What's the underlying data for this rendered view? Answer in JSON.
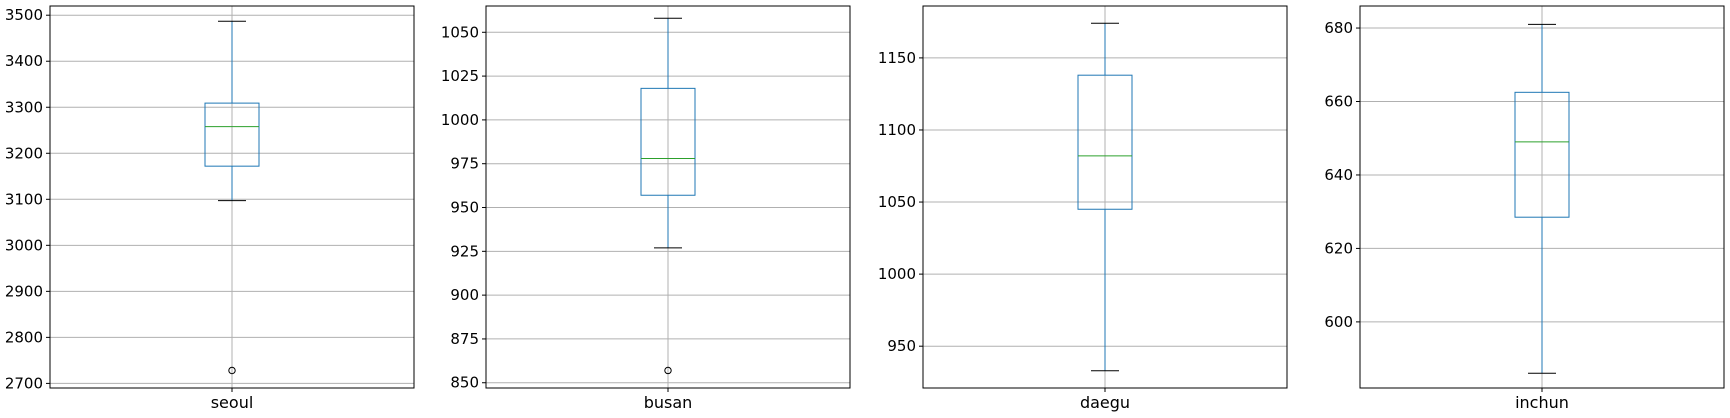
{
  "chart_data": [
    {
      "type": "box",
      "categories": [
        "seoul"
      ],
      "xlabel": "seoul",
      "ylim": [
        2690,
        3520
      ],
      "yticks": [
        2700,
        2800,
        2900,
        3000,
        3100,
        3200,
        3300,
        3400,
        3500
      ],
      "grid": true,
      "stats": {
        "whislo": 3097,
        "q1": 3172,
        "med": 3258,
        "q3": 3309,
        "whishi": 3487,
        "fliers": [
          2728
        ]
      }
    },
    {
      "type": "box",
      "categories": [
        "busan"
      ],
      "xlabel": "busan",
      "ylim": [
        847,
        1065
      ],
      "yticks": [
        850,
        875,
        900,
        925,
        950,
        975,
        1000,
        1025,
        1050
      ],
      "grid": true,
      "stats": {
        "whislo": 927,
        "q1": 957,
        "med": 978,
        "q3": 1018,
        "whishi": 1058,
        "fliers": [
          857
        ]
      }
    },
    {
      "type": "box",
      "categories": [
        "daegu"
      ],
      "xlabel": "daegu",
      "ylim": [
        921,
        1186
      ],
      "yticks": [
        950,
        1000,
        1050,
        1100,
        1150
      ],
      "grid": true,
      "stats": {
        "whislo": 933,
        "q1": 1045,
        "med": 1082,
        "q3": 1138,
        "whishi": 1174,
        "fliers": []
      }
    },
    {
      "type": "box",
      "categories": [
        "inchun"
      ],
      "xlabel": "inchun",
      "ylim": [
        582,
        686
      ],
      "yticks": [
        600,
        620,
        640,
        660,
        680
      ],
      "grid": true,
      "stats": {
        "whislo": 586,
        "q1": 628.5,
        "med": 649,
        "q3": 662.5,
        "whishi": 681,
        "fliers": []
      }
    }
  ],
  "colors": {
    "box": "#1f77b4",
    "median": "#2ca02c",
    "grid": "#b0b0b0",
    "frame": "#000000"
  }
}
